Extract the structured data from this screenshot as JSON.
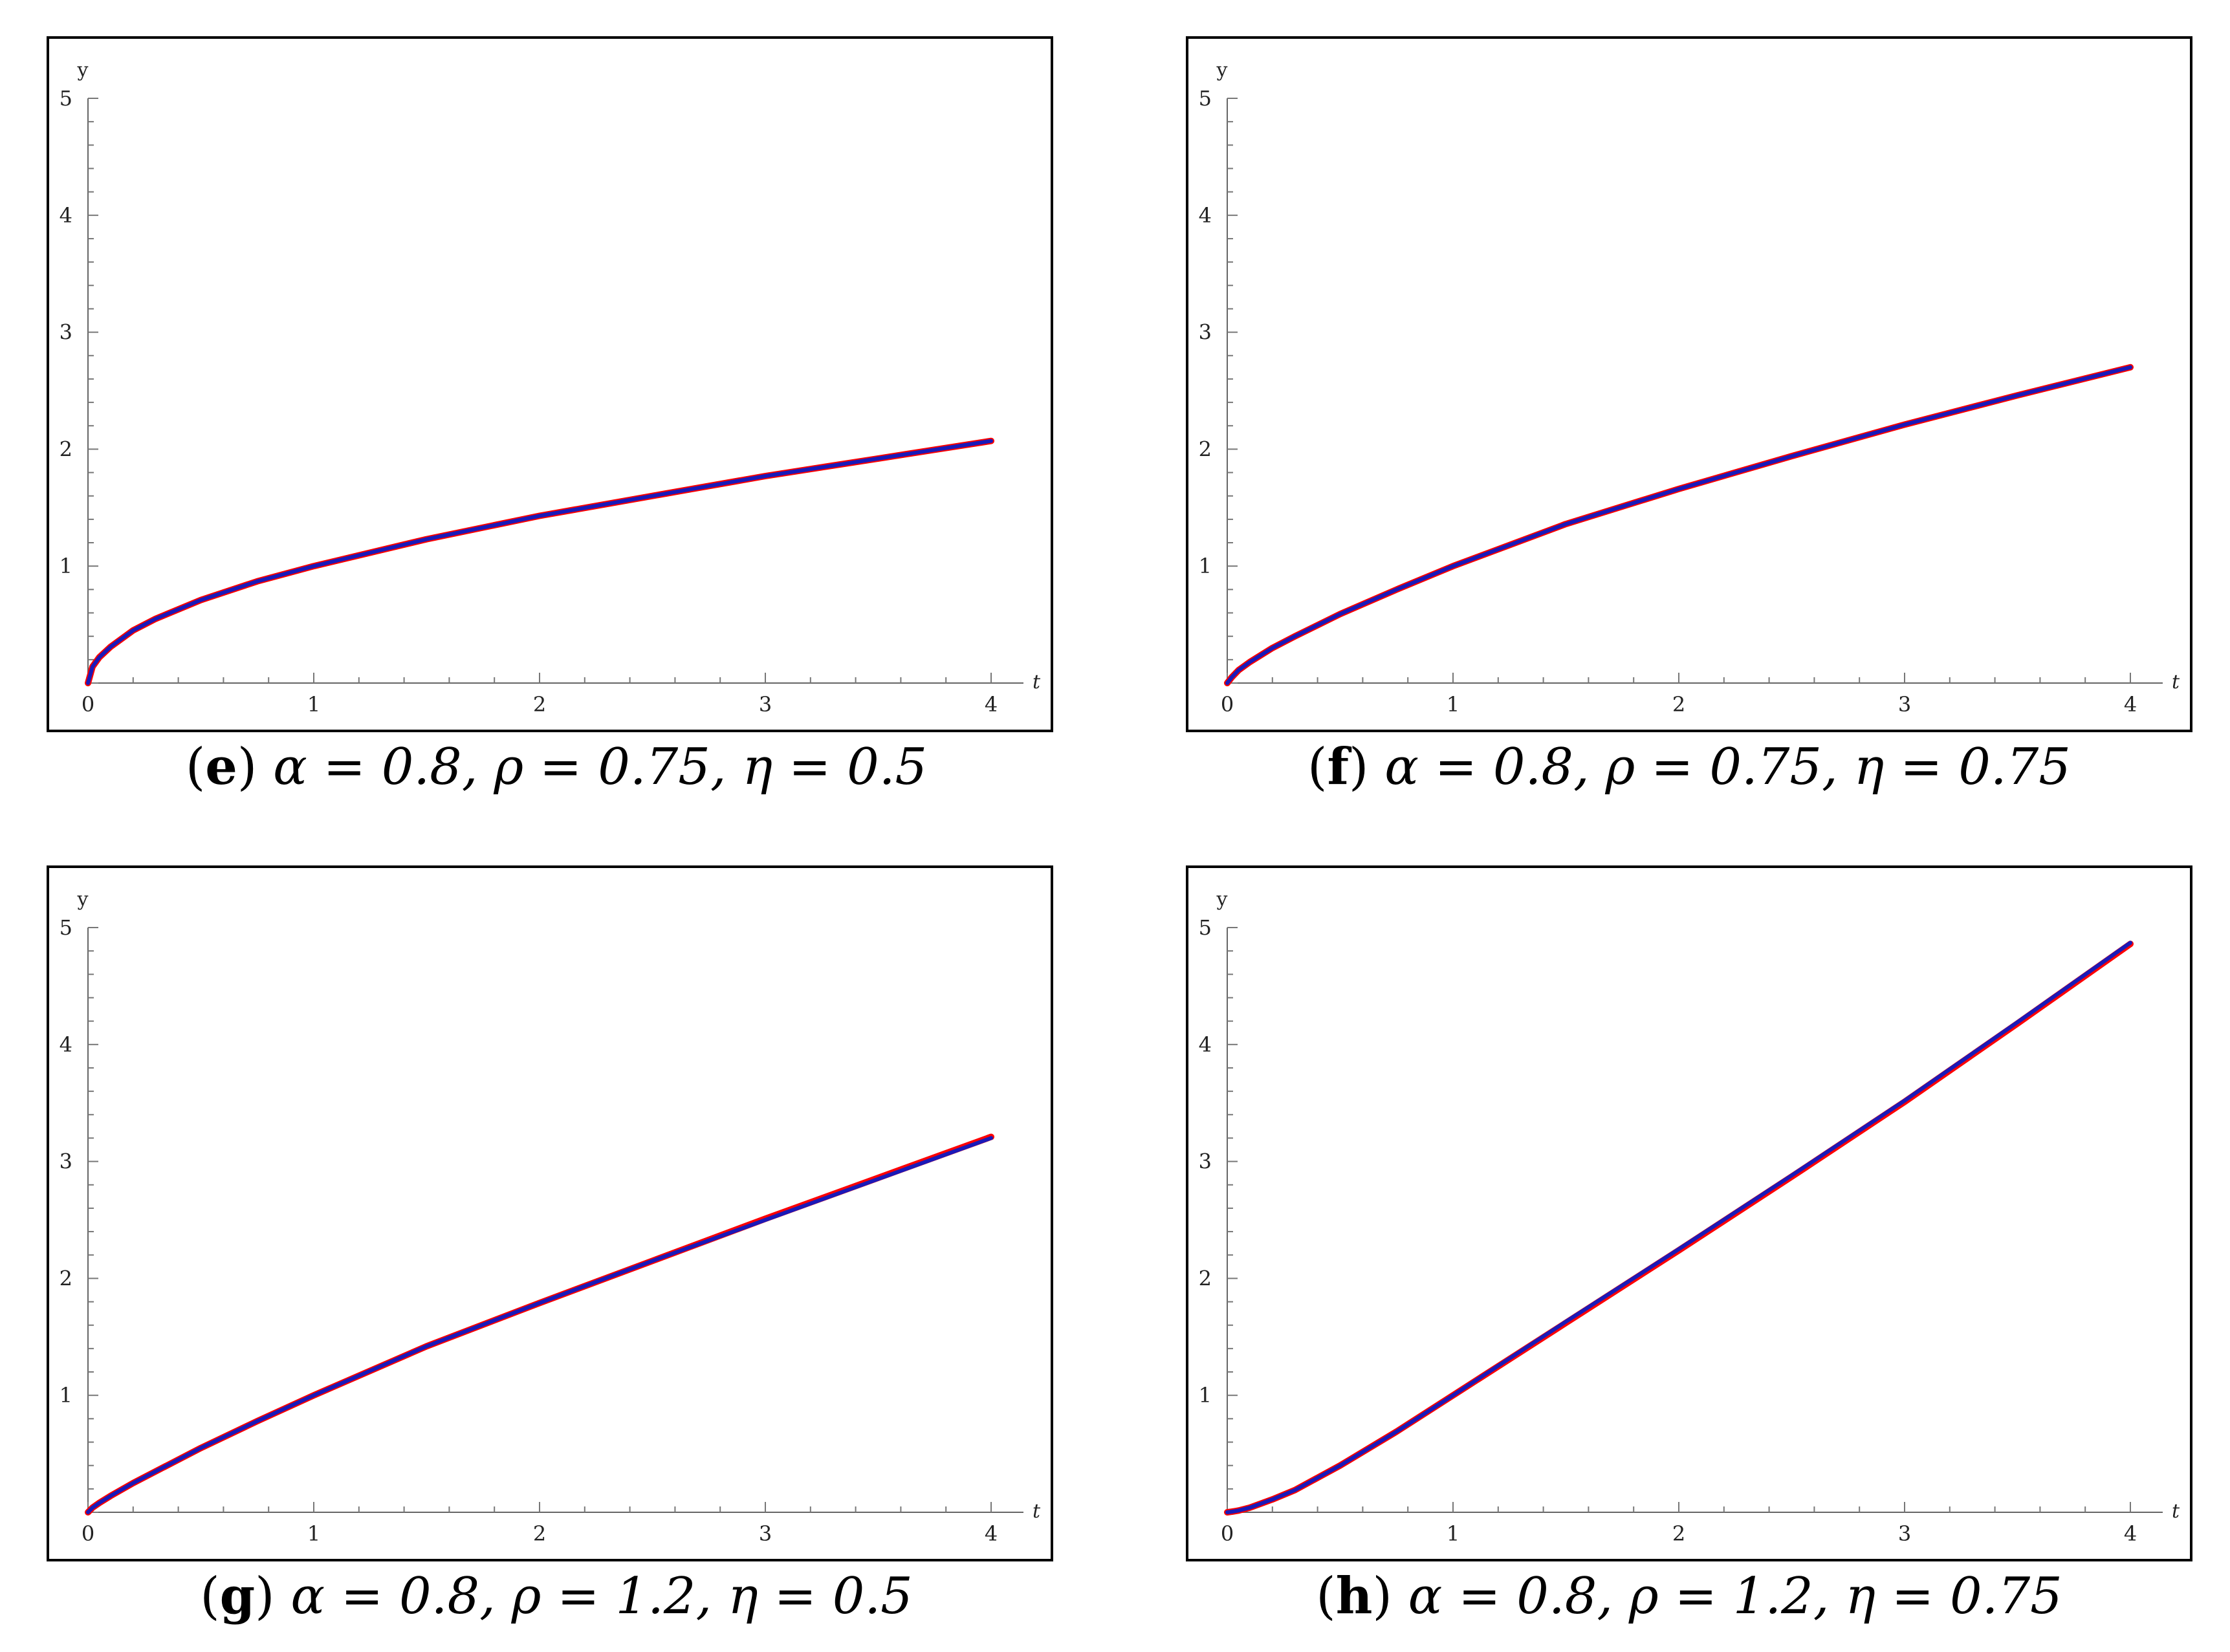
{
  "chart_data": [
    {
      "type": "line",
      "panel": "e",
      "caption": {
        "letter": "e",
        "params": "α = 0.8, ρ = 0.75, η = 0.5"
      },
      "xlabel": "t",
      "ylabel": "y",
      "xlim": [
        0,
        4
      ],
      "ylim": [
        0,
        5
      ],
      "xticks": [
        "0",
        "1",
        "2",
        "3",
        "4"
      ],
      "yticks": [
        "1",
        "2",
        "3",
        "4",
        "5"
      ],
      "x": [
        0,
        0.02,
        0.05,
        0.1,
        0.2,
        0.3,
        0.5,
        0.75,
        1,
        1.5,
        2,
        2.5,
        3,
        3.5,
        4
      ],
      "series": [
        {
          "color": "#ff0000",
          "values": [
            0,
            0.14,
            0.22,
            0.31,
            0.45,
            0.55,
            0.71,
            0.87,
            1.0,
            1.23,
            1.43,
            1.6,
            1.77,
            1.92,
            2.07
          ]
        },
        {
          "color": "#1a1ab8",
          "values": [
            0,
            0.14,
            0.22,
            0.31,
            0.45,
            0.55,
            0.71,
            0.87,
            1.0,
            1.23,
            1.43,
            1.6,
            1.77,
            1.92,
            2.07
          ]
        }
      ]
    },
    {
      "type": "line",
      "panel": "f",
      "caption": {
        "letter": "f",
        "params": "α = 0.8, ρ = 0.75, η = 0.75"
      },
      "xlabel": "t",
      "ylabel": "y",
      "xlim": [
        0,
        4
      ],
      "ylim": [
        0,
        5
      ],
      "xticks": [
        "0",
        "1",
        "2",
        "3",
        "4"
      ],
      "yticks": [
        "1",
        "2",
        "3",
        "4",
        "5"
      ],
      "x": [
        0,
        0.02,
        0.05,
        0.1,
        0.2,
        0.3,
        0.5,
        0.75,
        1,
        1.5,
        2,
        2.5,
        3,
        3.5,
        4
      ],
      "series": [
        {
          "color": "#ff0000",
          "values": [
            0,
            0.05,
            0.11,
            0.18,
            0.3,
            0.4,
            0.59,
            0.8,
            1.0,
            1.36,
            1.66,
            1.94,
            2.21,
            2.46,
            2.7
          ]
        },
        {
          "color": "#1a1ab8",
          "values": [
            0,
            0.05,
            0.11,
            0.18,
            0.3,
            0.4,
            0.59,
            0.8,
            1.0,
            1.36,
            1.66,
            1.94,
            2.21,
            2.46,
            2.7
          ]
        }
      ]
    },
    {
      "type": "line",
      "panel": "g",
      "caption": {
        "letter": "g",
        "params": "α = 0.8, ρ = 1.2, η = 0.5"
      },
      "xlabel": "t",
      "ylabel": "y",
      "xlim": [
        0,
        4
      ],
      "ylim": [
        0,
        5
      ],
      "xticks": [
        "0",
        "1",
        "2",
        "3",
        "4"
      ],
      "yticks": [
        "1",
        "2",
        "3",
        "4",
        "5"
      ],
      "x": [
        0,
        0.02,
        0.05,
        0.1,
        0.2,
        0.3,
        0.5,
        0.75,
        1,
        1.5,
        2,
        2.5,
        3,
        3.5,
        4
      ],
      "series": [
        {
          "color": "#ff0000",
          "values": [
            0,
            0.04,
            0.08,
            0.14,
            0.25,
            0.35,
            0.55,
            0.78,
            1.0,
            1.42,
            1.79,
            2.15,
            2.51,
            2.86,
            3.21
          ]
        },
        {
          "color": "#1a1ab8",
          "values": [
            0,
            0.04,
            0.08,
            0.14,
            0.25,
            0.35,
            0.55,
            0.78,
            1.0,
            1.42,
            1.79,
            2.15,
            2.5,
            2.85,
            3.2
          ]
        }
      ]
    },
    {
      "type": "line",
      "panel": "h",
      "caption": {
        "letter": "h",
        "params": "α = 0.8, ρ = 1.2, η = 0.75"
      },
      "xlabel": "t",
      "ylabel": "y",
      "xlim": [
        0,
        4
      ],
      "ylim": [
        0,
        5
      ],
      "xticks": [
        "0",
        "1",
        "2",
        "3",
        "4"
      ],
      "yticks": [
        "1",
        "2",
        "3",
        "4",
        "5"
      ],
      "x": [
        0,
        0.02,
        0.05,
        0.1,
        0.2,
        0.3,
        0.5,
        0.75,
        1,
        1.5,
        2,
        2.5,
        3,
        3.5,
        4
      ],
      "series": [
        {
          "color": "#ff0000",
          "values": [
            0,
            0.005,
            0.015,
            0.04,
            0.11,
            0.19,
            0.4,
            0.69,
            1.0,
            1.62,
            2.24,
            2.87,
            3.51,
            4.18,
            4.86
          ]
        },
        {
          "color": "#1a1ab8",
          "values": [
            0,
            0.005,
            0.015,
            0.04,
            0.11,
            0.19,
            0.4,
            0.69,
            1.0,
            1.63,
            2.25,
            2.88,
            3.52,
            4.19,
            4.87
          ]
        }
      ]
    }
  ]
}
